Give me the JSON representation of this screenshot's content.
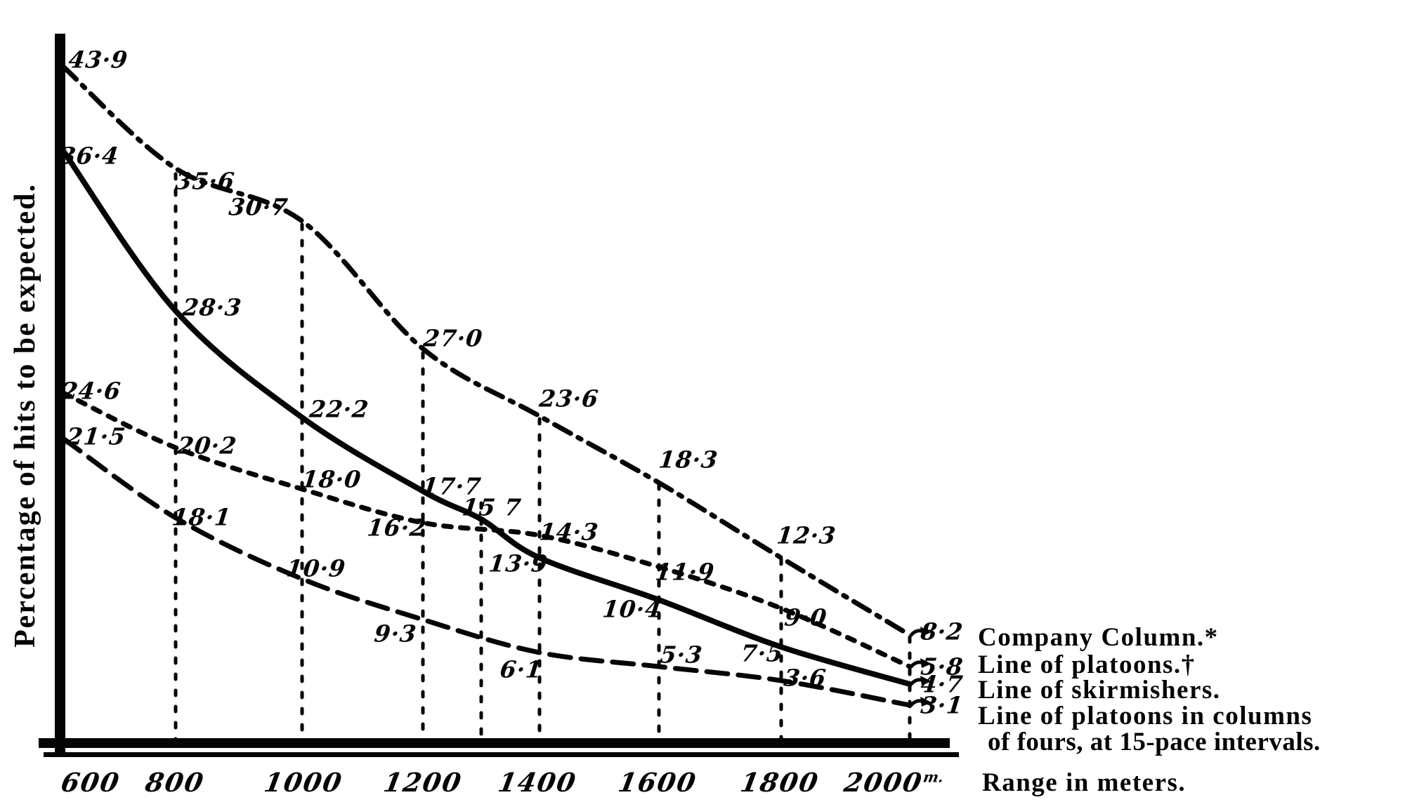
{
  "page": {
    "background": "#ffffff",
    "ink": "#050505"
  },
  "axes": {
    "y_label": "Percentage of hits to be expected.",
    "x_label": "Range in meters.",
    "x_ticks": [
      {
        "value": 600,
        "label": "600"
      },
      {
        "value": 800,
        "label": "800"
      },
      {
        "value": 1000,
        "label": "1000"
      },
      {
        "value": 1200,
        "label": "1200"
      },
      {
        "value": 1400,
        "label": "1400"
      },
      {
        "value": 1600,
        "label": "1600"
      },
      {
        "value": 1800,
        "label": "1800"
      },
      {
        "value": 2000,
        "label": "2000",
        "superscript": "m."
      }
    ]
  },
  "legend": {
    "items": [
      {
        "label": "Company Column.*"
      },
      {
        "label": "Line of platoons.†"
      },
      {
        "label": "Line of skirmishers."
      },
      {
        "label": "Line of platoons in columns",
        "label_line2": "of fours, at 15-pace intervals."
      }
    ]
  },
  "chart_data": {
    "type": "line",
    "title": "",
    "xlabel": "Range in meters.",
    "ylabel": "Percentage of hits to be expected.",
    "x_range_meters": [
      600,
      2000
    ],
    "grid": "vertical dotted guide lines at labeled ranges (including 1300)",
    "legend_position": "right of plot, aligned with curve end values",
    "series": [
      {
        "name": "Company Column.*",
        "line_style": "dash-dot",
        "points": [
          {
            "range": 600,
            "value": 43.9,
            "label": "43·9"
          },
          {
            "range": 800,
            "value": 35.6,
            "label": "35·6"
          },
          {
            "range": 1000,
            "value": 30.7,
            "label": "30·7"
          },
          {
            "range": 1200,
            "value": 27.0,
            "label": "27·0"
          },
          {
            "range": 1400,
            "value": 23.6,
            "label": "23·6"
          },
          {
            "range": 1600,
            "value": 18.3,
            "label": "18·3"
          },
          {
            "range": 1800,
            "value": 12.3,
            "label": "12·3"
          },
          {
            "range": 2000,
            "value": 8.2,
            "label": "8·2"
          }
        ]
      },
      {
        "name": "Line of platoons.†",
        "line_style": "short-dash",
        "points": [
          {
            "range": 600,
            "value": 24.6,
            "label": "24·6"
          },
          {
            "range": 800,
            "value": 20.2,
            "label": "20·2"
          },
          {
            "range": 1000,
            "value": 18.0,
            "label": "18·0"
          },
          {
            "range": 1200,
            "value": 16.2,
            "label": "16·2"
          },
          {
            "range": 1400,
            "value": 14.3,
            "label": "14·3"
          },
          {
            "range": 1600,
            "value": 11.9,
            "label": "11·9"
          },
          {
            "range": 1800,
            "value": 9.0,
            "label": "9·0"
          },
          {
            "range": 2000,
            "value": 5.8,
            "label": "5·8"
          }
        ]
      },
      {
        "name": "Line of skirmishers.",
        "line_style": "solid",
        "points": [
          {
            "range": 600,
            "value": 36.4,
            "label": "36·4"
          },
          {
            "range": 800,
            "value": 28.3,
            "label": "28·3"
          },
          {
            "range": 1000,
            "value": 22.2,
            "label": "22·2"
          },
          {
            "range": 1200,
            "value": 17.7,
            "label": "17·7"
          },
          {
            "range": 1300,
            "value": 15.7,
            "label": "15 7"
          },
          {
            "range": 1400,
            "value": 13.9,
            "label": "13·9"
          },
          {
            "range": 1600,
            "value": 10.4,
            "label": "10·4"
          },
          {
            "range": 1800,
            "value": 7.5,
            "label": "7·5"
          },
          {
            "range": 2000,
            "value": 4.7,
            "label": "4·7"
          }
        ]
      },
      {
        "name": "Line of platoons in columns of fours, at 15-pace intervals.",
        "line_style": "long-dash",
        "points": [
          {
            "range": 600,
            "value": 21.5,
            "label": "21·5"
          },
          {
            "range": 800,
            "value": 18.1,
            "label": "18·1"
          },
          {
            "range": 1000,
            "value": 10.9,
            "label": "10·9"
          },
          {
            "range": 1200,
            "value": 9.3,
            "label": "9·3"
          },
          {
            "range": 1400,
            "value": 6.1,
            "label": "6·1"
          },
          {
            "range": 1600,
            "value": 5.3,
            "label": "5·3"
          },
          {
            "range": 1800,
            "value": 3.6,
            "label": "3·6"
          },
          {
            "range": 2000,
            "value": 3.1,
            "label": "3·1"
          }
        ]
      }
    ]
  }
}
